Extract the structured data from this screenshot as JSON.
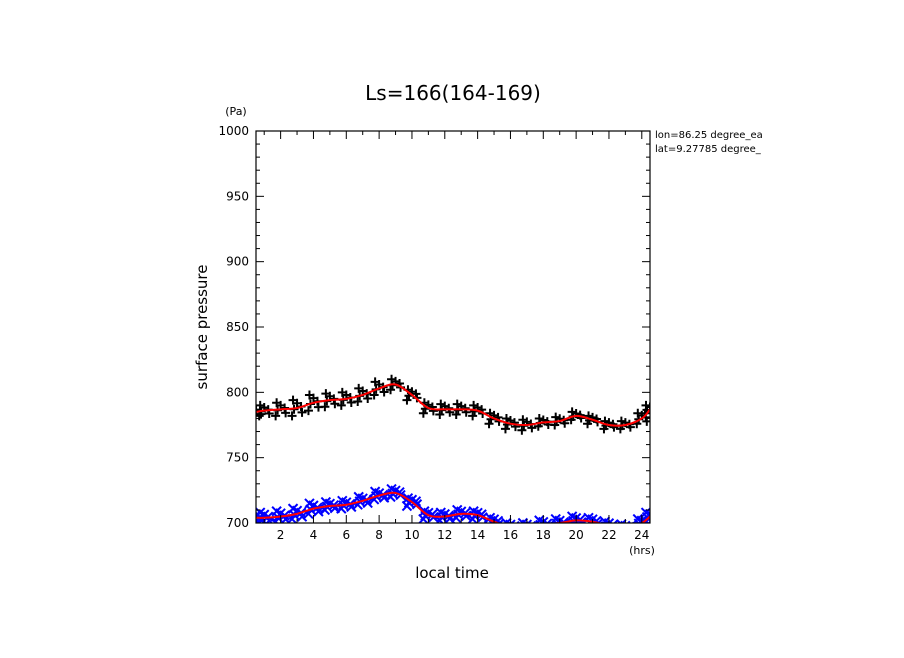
{
  "chart_data": {
    "type": "scatter",
    "title": "Ls=166(164-169)",
    "xlabel": "local time",
    "ylabel": "surface pressure",
    "x_unit": "(hrs)",
    "y_unit": "(Pa)",
    "xlim": [
      0.5,
      24.5
    ],
    "ylim": [
      700,
      1000
    ],
    "x_ticks": [
      2,
      4,
      6,
      8,
      10,
      12,
      14,
      16,
      18,
      20,
      22,
      24
    ],
    "y_ticks": [
      700,
      750,
      800,
      850,
      900,
      950,
      1000
    ],
    "grid": false,
    "annotations": [
      "lon=86.25 degree_ea",
      "lat=9.27785 degree_"
    ],
    "x": [
      0.5,
      1,
      2,
      3,
      4,
      5,
      6,
      7,
      8,
      9,
      10,
      11,
      12,
      13,
      14,
      15,
      16,
      17,
      18,
      19,
      20,
      21,
      22,
      23,
      24,
      24.5
    ],
    "series": [
      {
        "marker": "+",
        "color": "#000000",
        "fit_color": "#ff0000",
        "values": [
          785,
          786,
          787,
          788,
          792,
          794,
          795,
          798,
          803,
          806,
          798,
          788,
          787,
          787,
          786,
          780,
          776,
          775,
          777,
          778,
          782,
          779,
          775,
          775,
          780,
          787
        ],
        "spread": [
          3,
          4,
          5,
          6,
          6,
          5,
          5,
          5,
          5,
          4,
          4,
          4,
          4,
          4,
          4,
          4,
          4,
          4,
          3,
          3,
          3,
          3,
          3,
          3,
          4,
          3
        ]
      },
      {
        "marker": "x",
        "color": "#0000ff",
        "fit_color": "#ff0000",
        "values": [
          704,
          704,
          705,
          707,
          711,
          713,
          714,
          717,
          721,
          723,
          716,
          706,
          705,
          707,
          706,
          701,
          697,
          697,
          699,
          700,
          702,
          701,
          698,
          696,
          700,
          705
        ],
        "spread": [
          3,
          4,
          4,
          4,
          4,
          3,
          3,
          3,
          3,
          3,
          3,
          3,
          3,
          3,
          3,
          3,
          3,
          3,
          3,
          3,
          3,
          3,
          3,
          3,
          3,
          3
        ]
      }
    ]
  }
}
